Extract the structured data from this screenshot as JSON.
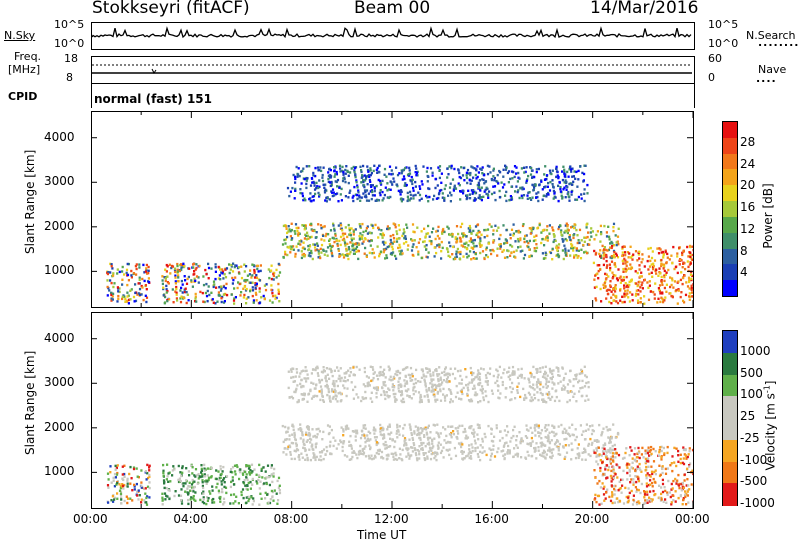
{
  "header": {
    "station": "Stokkseyri (fitACF)",
    "beam": "Beam 00",
    "date": "14/Mar/2016"
  },
  "sky_panel": {
    "left_label": "N.Sky",
    "left_ticks": [
      "10^5",
      "10^0"
    ],
    "right_ticks": [
      "10^5",
      "10^0"
    ],
    "right_label": "N.Search",
    "right_marker": "........"
  },
  "freq_panel": {
    "left_label_1": "Freq.",
    "left_label_2": "[MHz]",
    "left_ticks": [
      "18",
      "8"
    ],
    "right_ticks": [
      "60",
      "0"
    ],
    "right_label": "Nave",
    "right_marker": "....",
    "cpid_label": "CPID",
    "cpid_text": "normal (fast) 151"
  },
  "chart_data": [
    {
      "type": "heatmap",
      "title": "",
      "ylabel": "Slant Range [km]",
      "xlabel": "",
      "x_range_hours": [
        0,
        24
      ],
      "ylim": [
        200,
        4600
      ],
      "y_ticks": [
        "1000",
        "2000",
        "3000",
        "4000"
      ],
      "colorbar": {
        "label": "Power [dB]",
        "ticks": [
          "4",
          "8",
          "12",
          "16",
          "20",
          "24",
          "28"
        ],
        "colors": [
          "#0000ff",
          "#1a3fb4",
          "#2c5fa0",
          "#3f8f6a",
          "#57a84a",
          "#a6c93a",
          "#e8d21d",
          "#f4a41a",
          "#f2781a",
          "#ee4418",
          "#e61010"
        ]
      },
      "echo_regions": [
        {
          "t0": 0.6,
          "t1": 2.3,
          "r0": 300,
          "r1": 1200,
          "level": "mixed-high"
        },
        {
          "t0": 2.8,
          "t1": 7.5,
          "r0": 300,
          "r1": 1200,
          "level": "mixed"
        },
        {
          "t0": 7.6,
          "t1": 21.0,
          "r0": 1300,
          "r1": 2100,
          "level": "mid-high"
        },
        {
          "t0": 7.8,
          "t1": 19.8,
          "r0": 2600,
          "r1": 3400,
          "level": "low"
        },
        {
          "t0": 20.0,
          "t1": 24.0,
          "r0": 300,
          "r1": 1600,
          "level": "high"
        }
      ]
    },
    {
      "type": "heatmap",
      "title": "",
      "ylabel": "Slant Range [km]",
      "xlabel": "Time UT",
      "x_range_hours": [
        0,
        24
      ],
      "x_ticks": [
        "00:00",
        "04:00",
        "08:00",
        "12:00",
        "16:00",
        "20:00",
        "00:00"
      ],
      "ylim": [
        200,
        4600
      ],
      "y_ticks": [
        "1000",
        "2000",
        "3000",
        "4000"
      ],
      "colorbar": {
        "label": "Velocity [m s^-1]",
        "ticks": [
          "1000",
          "500",
          "100",
          "25",
          "-25",
          "-100",
          "-500",
          "-1000"
        ],
        "colors": [
          "#1f3fbf",
          "#2a7a3f",
          "#5fb04a",
          "#c8c8c0",
          "#c8c8c0",
          "#f5a623",
          "#f07818",
          "#e21a1a"
        ]
      },
      "echo_regions": [
        {
          "t0": 0.6,
          "t1": 2.3,
          "r0": 300,
          "r1": 1200,
          "level": "positive-mixed"
        },
        {
          "t0": 2.8,
          "t1": 7.5,
          "r0": 300,
          "r1": 1200,
          "level": "positive"
        },
        {
          "t0": 7.6,
          "t1": 21.0,
          "r0": 1300,
          "r1": 2100,
          "level": "near-zero"
        },
        {
          "t0": 7.8,
          "t1": 19.8,
          "r0": 2600,
          "r1": 3400,
          "level": "near-zero"
        },
        {
          "t0": 20.0,
          "t1": 24.0,
          "r0": 300,
          "r1": 1600,
          "level": "negative"
        }
      ]
    }
  ]
}
